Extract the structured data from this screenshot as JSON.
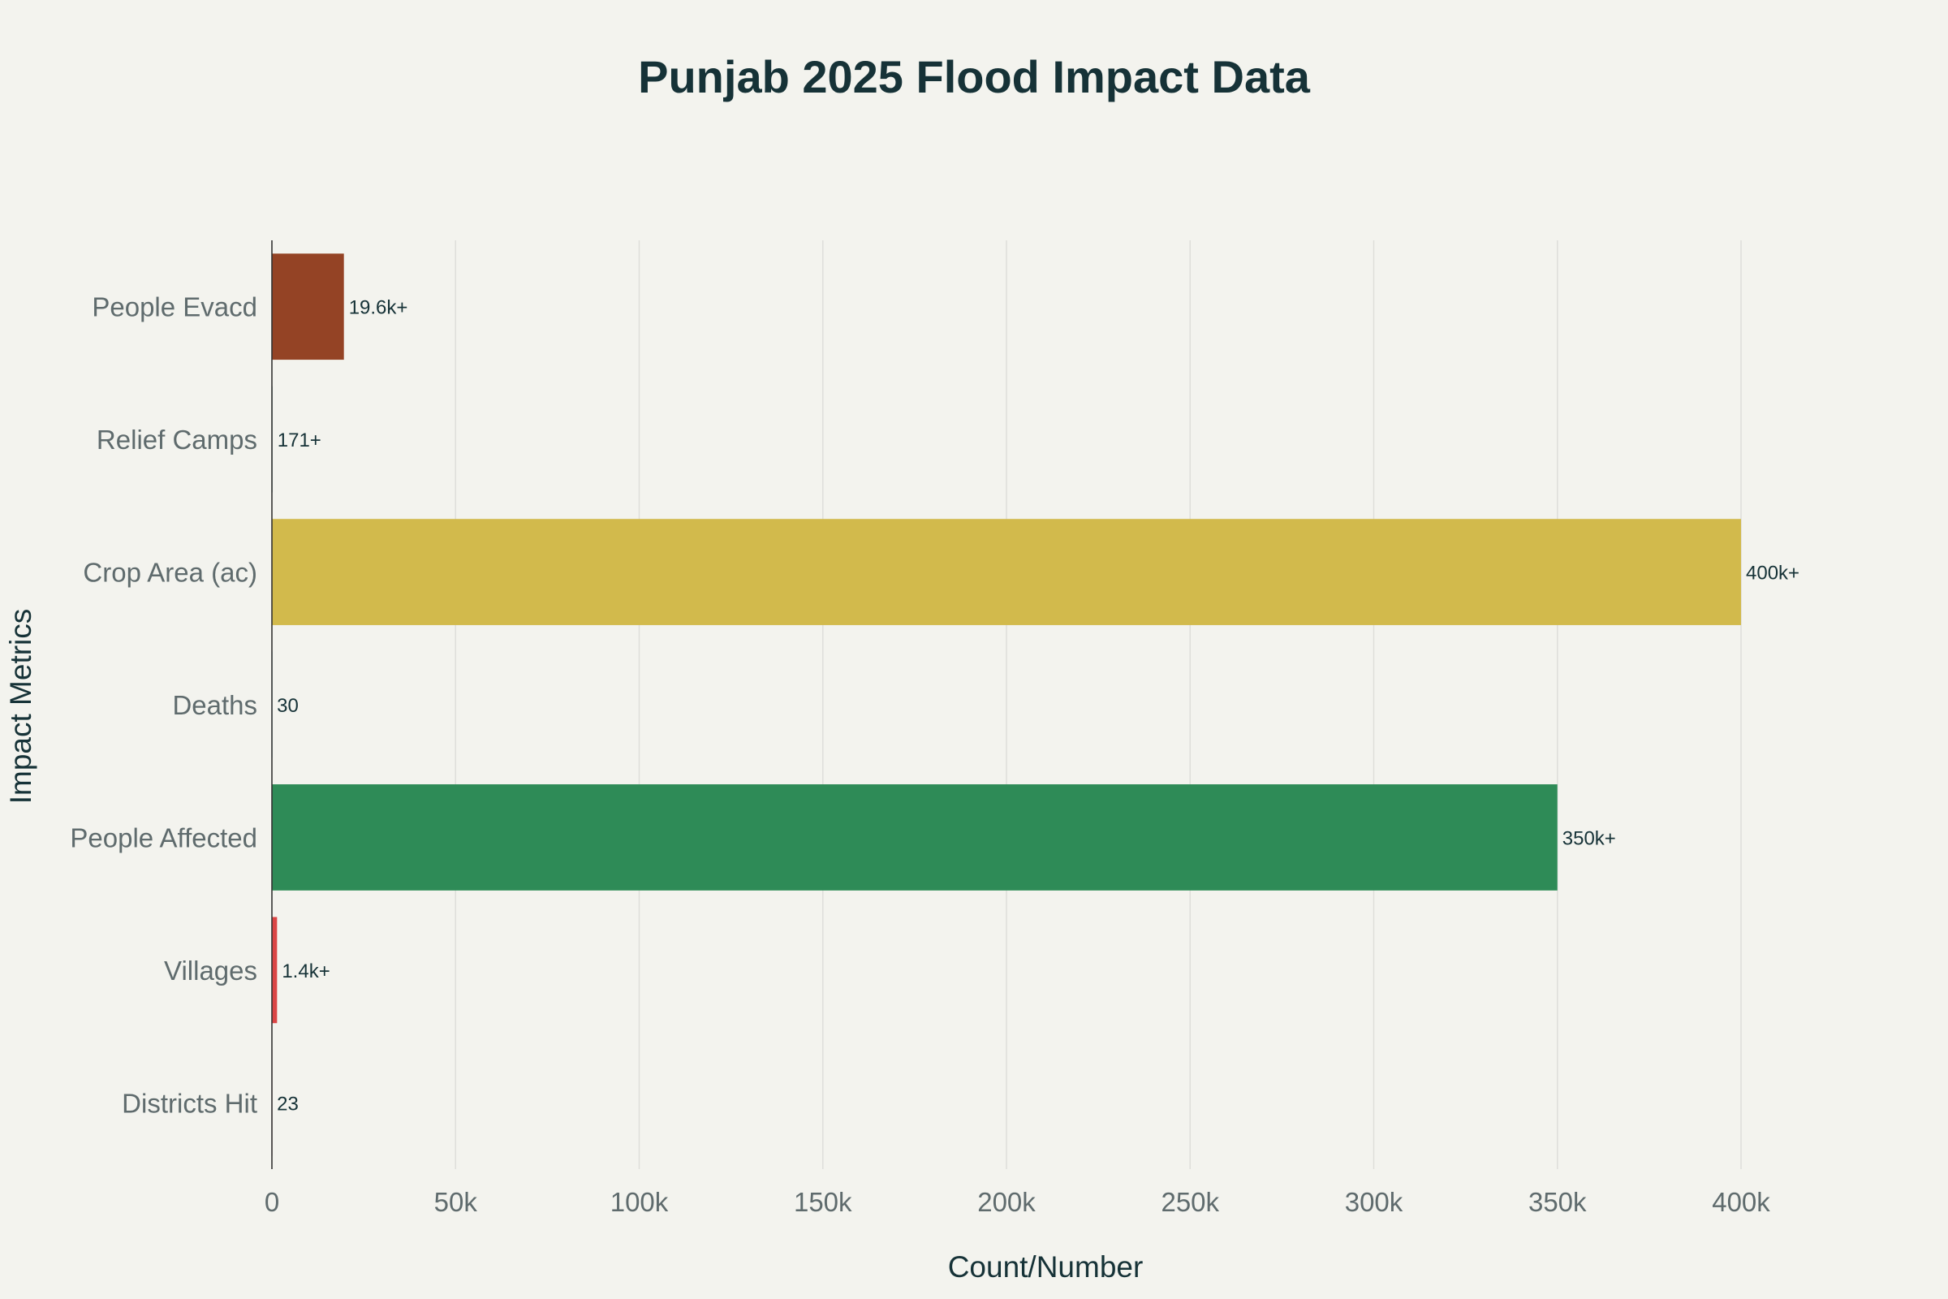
{
  "chart_data": {
    "type": "bar",
    "orientation": "horizontal",
    "title": "Punjab 2025 Flood Impact Data",
    "xlabel": "Count/Number",
    "ylabel": "Impact Metrics",
    "xlim": [
      0,
      400000
    ],
    "grid": true,
    "legend": "none",
    "x_ticks": [
      {
        "value": 0,
        "label": "0"
      },
      {
        "value": 50000,
        "label": "50k"
      },
      {
        "value": 100000,
        "label": "100k"
      },
      {
        "value": 150000,
        "label": "150k"
      },
      {
        "value": 200000,
        "label": "200k"
      },
      {
        "value": 250000,
        "label": "250k"
      },
      {
        "value": 300000,
        "label": "300k"
      },
      {
        "value": 350000,
        "label": "350k"
      },
      {
        "value": 400000,
        "label": "400k"
      }
    ],
    "categories": [
      "People Evacd",
      "Relief Camps",
      "Crop Area (ac)",
      "Deaths",
      "People Affected",
      "Villages",
      "Districts Hit"
    ],
    "values": [
      19600,
      171,
      400000,
      30,
      350000,
      1400,
      23
    ],
    "data_labels": [
      "19.6k+",
      "171+",
      "400k+",
      "30",
      "350k+",
      "1.4k+",
      "23"
    ],
    "colors": [
      "#944325",
      "#5d878f",
      "#d2ba4c",
      "#1fb8cd",
      "#2e8b57",
      "#db4545",
      "#b4413c"
    ]
  },
  "style": {
    "background": "#f3f3ee",
    "text_color": "#163237",
    "tick_color": "#5f6b6d",
    "grid_color": "#dededa",
    "axis_color": "#333333"
  }
}
